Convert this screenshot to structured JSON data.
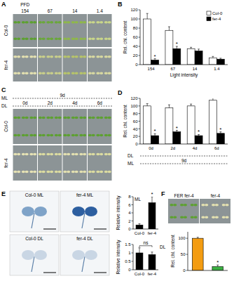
{
  "chart_data": [
    {
      "type": "bar",
      "title": "B",
      "categories": [
        "154",
        "67",
        "14",
        "1.4"
      ],
      "xlabel": "Light intensity",
      "ylabel": "Rel. chl. content",
      "series": [
        {
          "name": "Col-0",
          "color": "#ffffff",
          "values": [
            100,
            75,
            35,
            15
          ],
          "errors": [
            12,
            8,
            3,
            3
          ]
        },
        {
          "name": "fer-4",
          "color": "#000000",
          "values": [
            10,
            35,
            30,
            12
          ],
          "errors": [
            3,
            5,
            4,
            2
          ],
          "significance": [
            "*",
            "*",
            null,
            null
          ]
        }
      ],
      "ylim": [
        0,
        120
      ],
      "yticks": [
        0,
        20,
        40,
        60,
        80,
        100,
        120
      ],
      "legend": "top-right",
      "grid": false
    },
    {
      "type": "bar",
      "title": "D",
      "categories": [
        "0d",
        "2d",
        "4d",
        "6d"
      ],
      "xlabel": "DL",
      "x_sublabel": {
        "label": "ML",
        "text": "9d"
      },
      "ylabel": "Rel. chl. content",
      "series": [
        {
          "name": "Col-0",
          "color": "#ffffff",
          "values": [
            100,
            95,
            100,
            115
          ],
          "errors": [
            6,
            8,
            5,
            6
          ]
        },
        {
          "name": "fer-4",
          "color": "#000000",
          "values": [
            22,
            32,
            22,
            28
          ],
          "errors": [
            5,
            4,
            3,
            4
          ],
          "significance": [
            "*",
            "*",
            "*",
            "*"
          ]
        }
      ],
      "ylim": [
        0,
        120
      ],
      "yticks": [
        0,
        20,
        40,
        60,
        80,
        100,
        120
      ],
      "grid": false
    },
    {
      "type": "bar",
      "categories": [
        "Col-0",
        "fer-4"
      ],
      "ylabel": "Relative intensity",
      "values": [
        1,
        6.5
      ],
      "errors": [
        0.3,
        1.5
      ],
      "significance": [
        null,
        "*"
      ],
      "color": "#000000",
      "annotations": [
        {
          "text": "ML",
          "position": "top-left"
        }
      ],
      "ylim": [
        0,
        8
      ],
      "yticks": [
        0,
        2,
        4,
        6,
        8
      ],
      "grid": false
    },
    {
      "type": "bar",
      "categories": [
        "Col-0",
        "fer-4"
      ],
      "ylabel": "Relative intensity",
      "values": [
        1,
        0.9
      ],
      "errors": [
        0.3,
        0.15
      ],
      "color": "#000000",
      "annotations": [
        {
          "text": "ns",
          "position": "bracket"
        },
        {
          "text": "DL",
          "position": "top-right"
        }
      ],
      "ylim": [
        0,
        1.5
      ],
      "yticks": [
        0,
        0.5,
        1,
        1.5
      ],
      "grid": false
    },
    {
      "type": "bar",
      "categories": [
        null,
        null
      ],
      "ylabel": "Rel. chl. content",
      "values": [
        100,
        12
      ],
      "errors": [
        3,
        5
      ],
      "significance": [
        null,
        "*"
      ],
      "colors": [
        "#f39c12",
        "#3cb043"
      ],
      "ylim": [
        0,
        120
      ],
      "yticks": [
        0,
        50,
        100
      ],
      "tick_labels": "y",
      "grid": false
    }
  ],
  "photos": {
    "A": {
      "label": "A",
      "title": "PFD",
      "columns": [
        "154",
        "67",
        "14",
        "1.4"
      ],
      "rows": [
        "Col-0",
        "fer-4"
      ]
    },
    "C": {
      "label": "C",
      "header_rows": [
        {
          "label": "ML",
          "columns": [
            "9d"
          ]
        },
        {
          "label": "DL",
          "columns": [
            "0d",
            "2d",
            "4d",
            "6d"
          ]
        }
      ],
      "rows": [
        "Col-0",
        "fer-4"
      ]
    },
    "E": {
      "label": "E",
      "images": [
        "Col-0 ML",
        "fer-4 ML",
        "Col-0 DL",
        "fer-4 DL"
      ]
    },
    "F": {
      "label": "F",
      "images": [
        "FER fer-4",
        "fer-4"
      ]
    }
  }
}
